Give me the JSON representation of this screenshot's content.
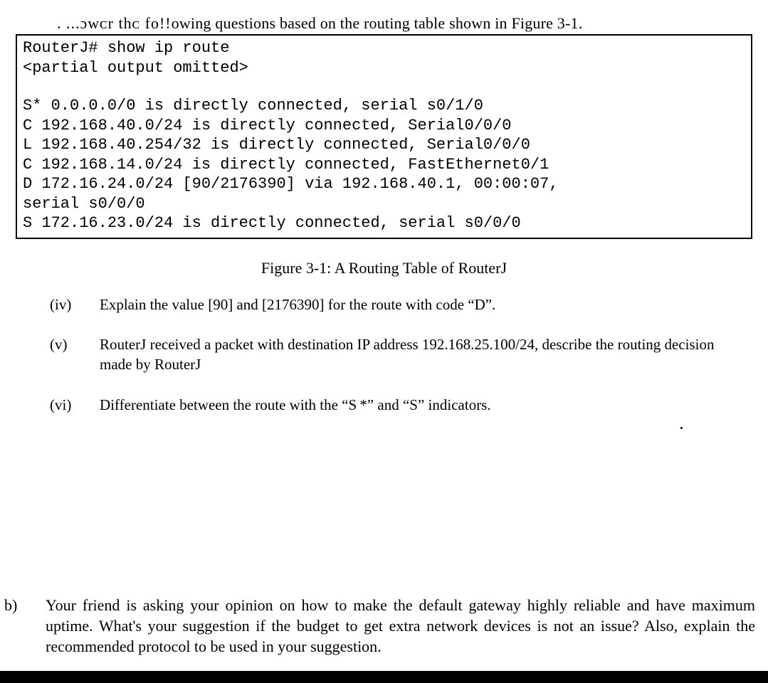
{
  "intro": {
    "garbled": ". ...ɔwᴄr thᴄ fᴏ!!",
    "rest": "owing questions based on the routing table shown in Figure 3-1."
  },
  "routing_table": {
    "line1": "RouterJ# show ip route",
    "line2": "<partial output omitted>",
    "entries": [
      "S*    0.0.0.0/0 is directly connected, serial s0/1/0",
      "C     192.168.40.0/24 is directly connected, Serial0/0/0",
      "L     192.168.40.254/32 is directly connected, Serial0/0/0",
      "C     192.168.14.0/24 is directly connected, FastEthernet0/1",
      "D     172.16.24.0/24 [90/2176390] via 192.168.40.1, 00:00:07,",
      "serial s0/0/0",
      "S     172.16.23.0/24 is directly connected, serial s0/0/0"
    ]
  },
  "figure_caption": "Figure 3-1: A Routing Table of RouterJ",
  "questions": {
    "iv": {
      "num": "(iv)",
      "text": "Explain the value [90] and [2176390] for the route with code “D”."
    },
    "v": {
      "num": "(v)",
      "text": "RouterJ received a packet with destination IP address 192.168.25.100/24, describe the routing decision made by RouterJ"
    },
    "vi": {
      "num": "(vi)",
      "text": "Differentiate between the route with the “S *” and “S” indicators."
    }
  },
  "part_b": {
    "label": "b)",
    "text": "Your friend is asking your opinion on how to make the default gateway highly reliable and have maximum uptime. What's your suggestion if the budget to get extra network devices is not an issue? Also, explain the recommended protocol to be used in your suggestion."
  }
}
